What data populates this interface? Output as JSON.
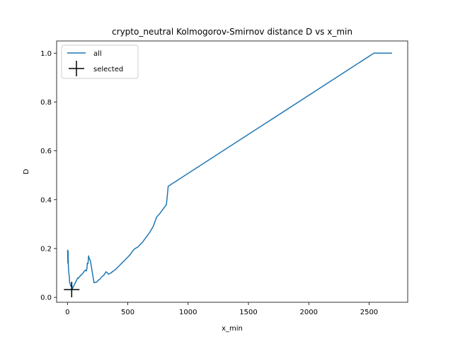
{
  "chart_data": {
    "type": "line",
    "title": "crypto_neutral Kolmogorov-Smirnov distance D vs x_min",
    "xlabel": "x_min",
    "ylabel": "D",
    "xlim": [
      -90,
      2820
    ],
    "ylim": [
      -0.02,
      1.05
    ],
    "xticks": [
      0,
      500,
      1000,
      1500,
      2000,
      2500
    ],
    "yticks": [
      0.0,
      0.2,
      0.4,
      0.6,
      0.8,
      1.0
    ],
    "xtick_labels": [
      "0",
      "500",
      "1000",
      "1500",
      "2000",
      "2500"
    ],
    "ytick_labels": [
      "0.0",
      "0.2",
      "0.4",
      "0.6",
      "0.8",
      "1.0"
    ],
    "grid": false,
    "legend_location": "upper-left",
    "series": [
      {
        "name": "all",
        "color": "#1f77b4",
        "marker": "none",
        "x": [
          1,
          3,
          5,
          8,
          12,
          15,
          18,
          22,
          25,
          30,
          35,
          40,
          45,
          50,
          55,
          60,
          65,
          70,
          75,
          80,
          85,
          90,
          95,
          100,
          110,
          120,
          130,
          140,
          145,
          150,
          155,
          160,
          165,
          170,
          175,
          180,
          190,
          200,
          210,
          220,
          230,
          240,
          255,
          270,
          285,
          300,
          320,
          330,
          340,
          360,
          380,
          400,
          420,
          440,
          460,
          480,
          500,
          520,
          540,
          560,
          580,
          600,
          620,
          650,
          680,
          710,
          740,
          760,
          790,
          820,
          835,
          2540,
          2690
        ],
        "y": [
          0.195,
          0.14,
          0.19,
          0.12,
          0.095,
          0.085,
          0.06,
          0.055,
          0.05,
          0.045,
          0.05,
          0.035,
          0.04,
          0.045,
          0.05,
          0.055,
          0.06,
          0.065,
          0.07,
          0.075,
          0.08,
          0.078,
          0.082,
          0.085,
          0.09,
          0.095,
          0.1,
          0.108,
          0.11,
          0.112,
          0.108,
          0.115,
          0.14,
          0.138,
          0.17,
          0.16,
          0.15,
          0.12,
          0.09,
          0.06,
          0.062,
          0.062,
          0.07,
          0.075,
          0.085,
          0.09,
          0.105,
          0.1,
          0.095,
          0.1,
          0.108,
          0.115,
          0.125,
          0.135,
          0.145,
          0.155,
          0.165,
          0.175,
          0.19,
          0.2,
          0.205,
          0.215,
          0.225,
          0.245,
          0.265,
          0.29,
          0.33,
          0.34,
          0.36,
          0.38,
          0.455,
          1.0,
          1.0
        ]
      },
      {
        "name": "selected",
        "color": "#000000",
        "marker": "+",
        "x": [
          35
        ],
        "y": [
          0.032
        ]
      }
    ]
  }
}
